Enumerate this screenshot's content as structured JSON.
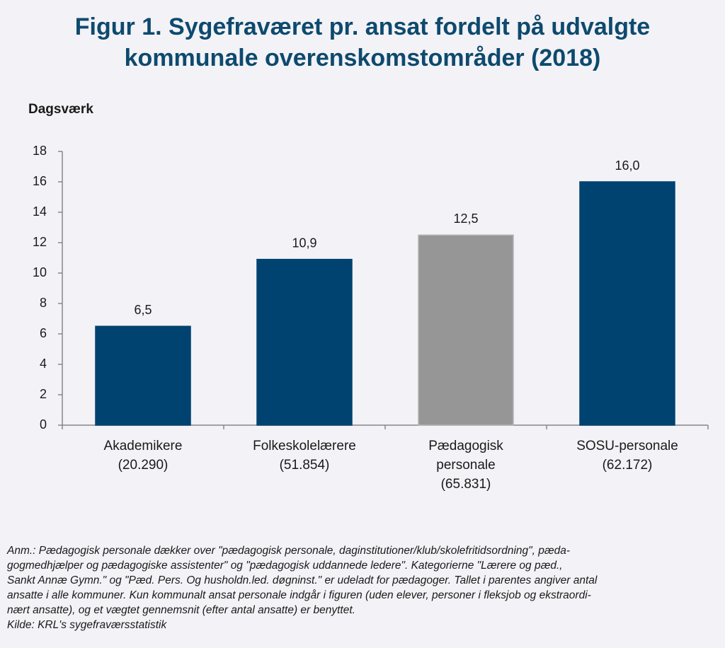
{
  "chart_data": {
    "type": "bar",
    "title": [
      "Figur 1. Sygefraværet pr. ansat fordelt på udvalgte",
      "kommunale overenskomstområder (2018)"
    ],
    "y_label": "Dagsværk",
    "categories": [
      [
        "Akademikere",
        "(20.290)"
      ],
      [
        "Folkeskolelærere",
        "(51.854)"
      ],
      [
        "Pædagogisk",
        "personale",
        "(65.831)"
      ],
      [
        "SOSU-personale",
        "(62.172)"
      ]
    ],
    "values": [
      6.5,
      10.9,
      12.5,
      16.0
    ],
    "value_labels": [
      "6,5",
      "10,9",
      "12,5",
      "16,0"
    ],
    "colors": [
      "#004370",
      "#004370",
      "#969696",
      "#004370"
    ],
    "ylim": [
      0,
      18
    ],
    "yticks": [
      0,
      2,
      4,
      6,
      8,
      10,
      12,
      14,
      16,
      18
    ],
    "grid": false,
    "note": [
      "Anm.: Pædagogisk personale dækker over \"pædagogisk personale, daginstitutioner/klub/skolefritidsordning\", pæda-",
      "gogmedhjælper og pædagogiske assistenter\" og \"pædagogisk uddannede ledere\". Kategorierne \"Lærere og pæd.,",
      "Sankt Annæ Gymn.\" og \"Pæd. Pers. Og husholdn.led. døgninst.\" er udeladt for pædagoger. Tallet i parentes angiver antal",
      "ansatte i alle kommuner. Kun kommunalt ansat personale indgår i figuren (uden elever, personer i fleksjob og ekstraordi-",
      "nært ansatte), og et vægtet gennemsnit (efter antal ansatte) er benyttet."
    ],
    "source": "Kilde: KRL's sygefraværsstatistik"
  }
}
